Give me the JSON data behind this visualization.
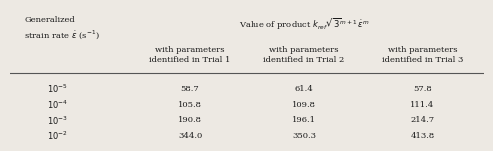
{
  "top_header": "Value of product $k_{ref}\\sqrt{3}^{m+1}\\,\\dot{\\varepsilon}^{m}$",
  "col0_header": "Generalized\nstrain rate $\\dot{\\varepsilon}$ (s$^{-1}$)",
  "col_headers": [
    "with parameters\nidentified in Trial 1",
    "with parameters\nidentified in Trial 2",
    "with parameters\nidentified in Trial 3"
  ],
  "row_labels": [
    "$10^{-5}$",
    "$10^{-4}$",
    "$10^{-3}$",
    "$10^{-2}$"
  ],
  "data": [
    [
      "58.7",
      "61.4",
      "57.8"
    ],
    [
      "105.8",
      "109.8",
      "111.4"
    ],
    [
      "190.8",
      "196.1",
      "214.7"
    ],
    [
      "344.0",
      "350.3",
      "413.8"
    ]
  ],
  "bg_color": "#ede9e3",
  "text_color": "#1a1a1a",
  "line_color": "#555555",
  "font_size": 6.0,
  "header_font_size": 6.0
}
